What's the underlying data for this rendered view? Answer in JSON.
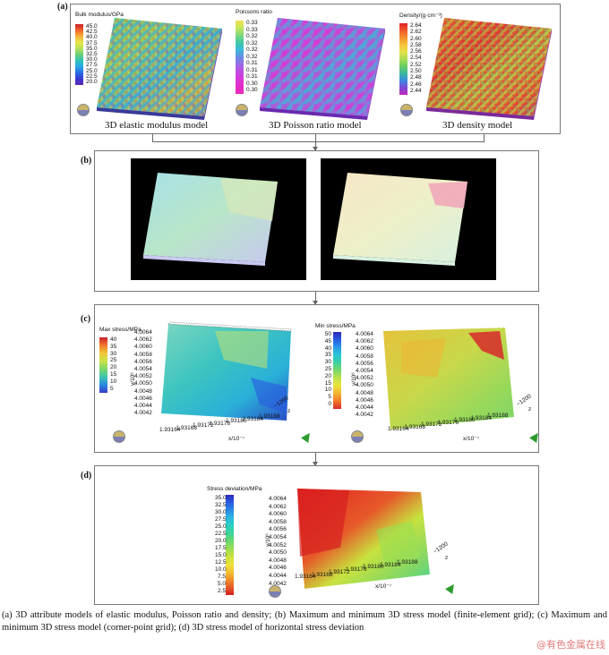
{
  "panels": {
    "a": {
      "label": "(a)"
    },
    "b": {
      "label": "(b)"
    },
    "c": {
      "label": "(c)"
    },
    "d": {
      "label": "(d)"
    }
  },
  "a_models": [
    {
      "title": "Bulk modulus/GPa",
      "caption": "3D elastic modulus model",
      "ticks": [
        "45.0",
        "42.5",
        "40.0",
        "37.5",
        "35.0",
        "32.5",
        "30.0",
        "27.5",
        "25.0",
        "22.5",
        "20.0"
      ],
      "colors": [
        "#c8202a",
        "#f0642a",
        "#f7b23a",
        "#e6e649",
        "#b7e05a",
        "#69d07a",
        "#2cc4b6",
        "#2aa6e6",
        "#2a6ae0",
        "#3a3ad0",
        "#5a2ab0"
      ]
    },
    {
      "title": "Poissons ratio",
      "caption": "3D Poisson ratio model",
      "ticks": [
        "0.33",
        "0.33",
        "0.32",
        "0.32",
        "0.32",
        "0.32",
        "0.31",
        "0.31",
        "0.31",
        "0.30",
        "0.30"
      ],
      "colors": [
        "#f0e050",
        "#c6e65a",
        "#7fd87a",
        "#3fc9a8",
        "#3ab8d8",
        "#6a8ae6",
        "#9a6ae6",
        "#c04ae0",
        "#d63ad6",
        "#e62ac8",
        "#e62ab6"
      ]
    },
    {
      "title": "Density/(g·cm⁻³)",
      "caption": "3D density model",
      "ticks": [
        "2.64",
        "2.62",
        "2.60",
        "2.58",
        "2.56",
        "2.54",
        "2.52",
        "2.50",
        "2.48",
        "2.46",
        "2.44"
      ],
      "colors": [
        "#e0202a",
        "#ee5a2a",
        "#f6902e",
        "#f7c23a",
        "#e4e04a",
        "#aadc52",
        "#6acc62",
        "#3ab8a0",
        "#3a8ae0",
        "#7a4ad6",
        "#c02ab6"
      ]
    }
  ],
  "c_plots": [
    {
      "title": "Max stress/MPa",
      "ticks": [
        "40",
        "35",
        "30",
        "25",
        "20",
        "15",
        "10",
        "5"
      ],
      "colors": [
        "#c8202a",
        "#f0782a",
        "#f2c83a",
        "#c8e34a",
        "#7cd66a",
        "#3cc4b0",
        "#2a8ae0",
        "#3a3ac8"
      ]
    },
    {
      "title": "Min stress/MPa",
      "ticks": [
        "50",
        "45",
        "40",
        "35",
        "30",
        "25",
        "20",
        "15",
        "10",
        "5",
        "0"
      ],
      "colors": [
        "#2a2ab8",
        "#2a5ae0",
        "#2a9ae6",
        "#2ac4d6",
        "#3cd0a0",
        "#7cd66a",
        "#bce24a",
        "#ece23a",
        "#f2b232",
        "#f0782a",
        "#d62a2a"
      ]
    }
  ],
  "d_plot": {
    "title": "Stress deviation/MPa",
    "ticks": [
      "35.0",
      "32.5",
      "30.0",
      "27.5",
      "25.0",
      "22.5",
      "20.0",
      "17.5",
      "15.0",
      "12.5",
      "10.0",
      "7.5",
      "5.0",
      "2.5"
    ],
    "colors": [
      "#2a2ab8",
      "#2a5ae0",
      "#2a8ae6",
      "#2ab8e0",
      "#2ad0c0",
      "#3cd49a",
      "#6ad870",
      "#9ade52",
      "#c8e23e",
      "#ece23a",
      "#f2c232",
      "#f0902a",
      "#e65a2a",
      "#d62020"
    ]
  },
  "axes": {
    "y_ticks": [
      "4.0064",
      "4.0062",
      "4.0060",
      "4.0058",
      "4.0056",
      "4.0054",
      "4.0052",
      "4.0050",
      "4.0048",
      "4.0046",
      "4.0044",
      "4.0042"
    ],
    "y_ticks_d": [
      "4.0064",
      "4.0062",
      "4.0060",
      "4.0058",
      "4.0056",
      "4.0054",
      "4.0052",
      "4.0050",
      "4.0048",
      "4.0046",
      "4.0044",
      "4.0042"
    ],
    "x_ticks": [
      "1.93164",
      "1.93168",
      "1.93172",
      "1.93176",
      "1.93180",
      "1.93184",
      "1.93188"
    ],
    "y_label": "y/10⁶",
    "x_label": "x/10⁻⁷",
    "z_tick": "−1200",
    "z_label": "z"
  },
  "caption": "(a) 3D attribute models of elastic modulus, Poisson ratio and density; (b) Maximum and minimum 3D stress model (finite-element grid); (c) Maximum and minimum 3D stress model (corner-point grid); (d) 3D stress model of horizontal stress deviation",
  "watermark": "@有色金属在线"
}
